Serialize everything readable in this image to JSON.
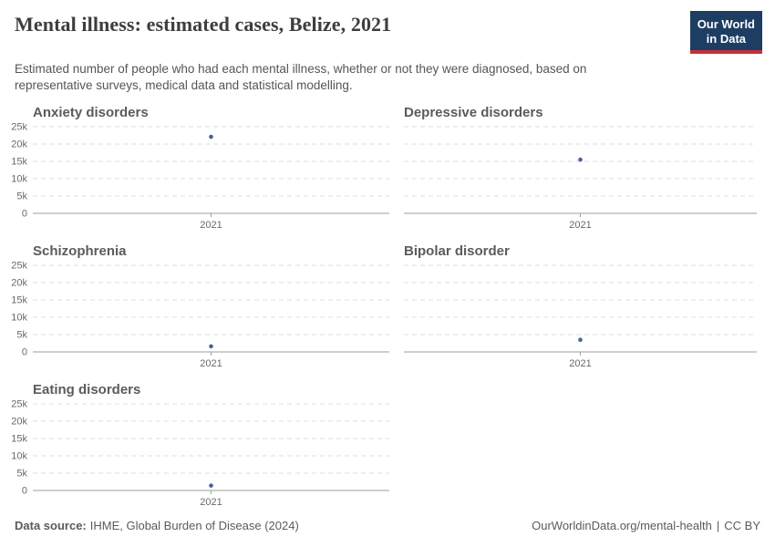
{
  "header": {
    "title": "Mental illness: estimated cases, Belize, 2021",
    "subtitle": "Estimated number of people who had each mental illness, whether or not they were diagnosed, based on representative surveys, medical data and statistical modelling.",
    "logo": {
      "line1": "Our World",
      "line2": "in Data",
      "bg_color": "#1d3d63",
      "accent_color": "#c5303e"
    }
  },
  "chart_config": {
    "point_color": "#46619b",
    "grid_color": "#dcdcdc",
    "axis_color": "#9e9e9e",
    "ylim": [
      0,
      25000
    ],
    "yticks": [
      0,
      5000,
      10000,
      15000,
      20000,
      25000
    ],
    "ytick_labels": [
      "0",
      "5k",
      "10k",
      "15k",
      "20k",
      "25k"
    ],
    "x_tick_label": "2021",
    "grid_on": true,
    "legend": "none"
  },
  "chart_data": [
    {
      "type": "scatter",
      "title": "Anxiety disorders",
      "x": [
        2021
      ],
      "values": [
        22100
      ],
      "ylim": [
        0,
        25000
      ],
      "xlabel": "",
      "ylabel": "",
      "show_y_labels": true
    },
    {
      "type": "scatter",
      "title": "Depressive disorders",
      "x": [
        2021
      ],
      "values": [
        15500
      ],
      "ylim": [
        0,
        25000
      ],
      "xlabel": "",
      "ylabel": "",
      "show_y_labels": false
    },
    {
      "type": "scatter",
      "title": "Schizophrenia",
      "x": [
        2021
      ],
      "values": [
        1600
      ],
      "ylim": [
        0,
        25000
      ],
      "xlabel": "",
      "ylabel": "",
      "show_y_labels": true
    },
    {
      "type": "scatter",
      "title": "Bipolar disorder",
      "x": [
        2021
      ],
      "values": [
        3500
      ],
      "ylim": [
        0,
        25000
      ],
      "xlabel": "",
      "ylabel": "",
      "show_y_labels": false
    },
    {
      "type": "scatter",
      "title": "Eating disorders",
      "x": [
        2021
      ],
      "values": [
        1400
      ],
      "ylim": [
        0,
        25000
      ],
      "xlabel": "",
      "ylabel": "",
      "show_y_labels": true
    }
  ],
  "footer": {
    "datasource_label": "Data source:",
    "datasource_value": "IHME, Global Burden of Disease (2024)",
    "link": "OurWorldinData.org/mental-health",
    "separator": "|",
    "license": "CC BY"
  }
}
